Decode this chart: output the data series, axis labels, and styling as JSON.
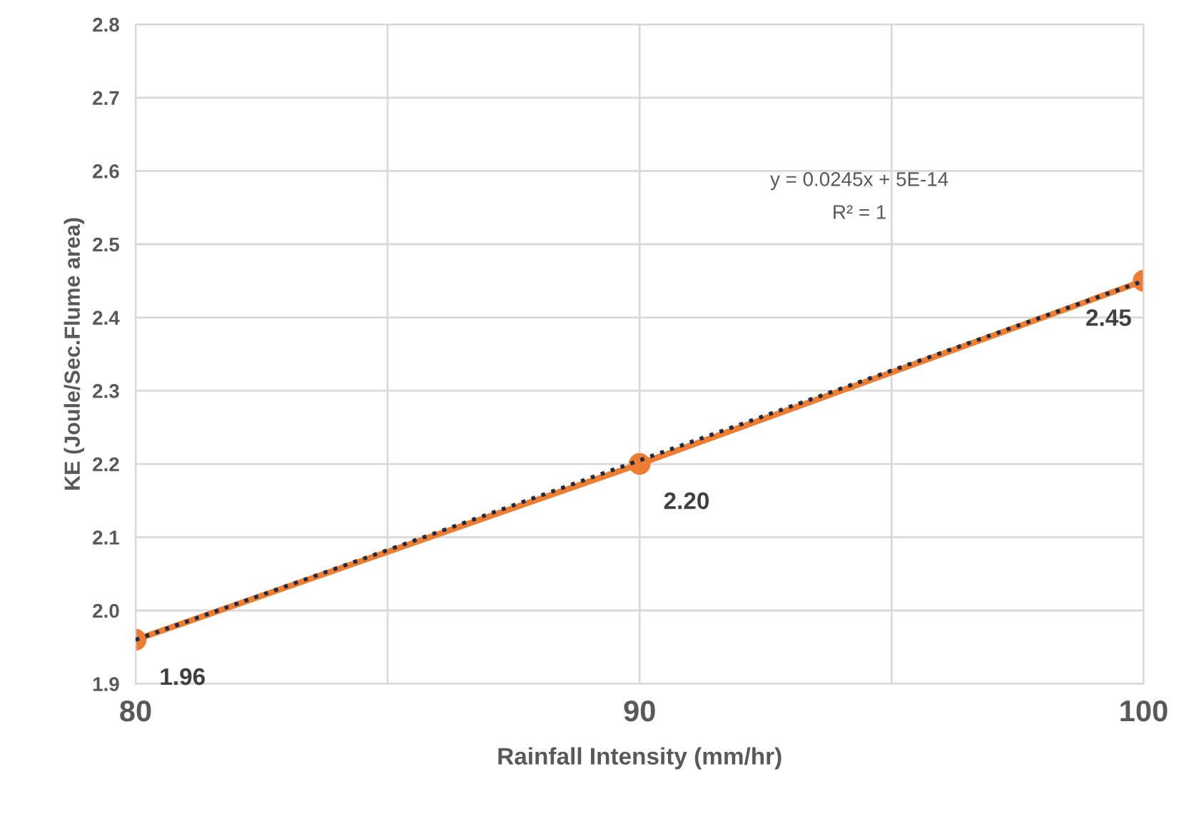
{
  "chart_data": {
    "type": "line",
    "xlabel": "Rainfall Intensity (mm/hr)",
    "ylabel": "KE (Joule/Sec.Flume area)",
    "x": [
      80,
      90,
      100
    ],
    "series": [
      {
        "color": "#ed7d31",
        "values": [
          1.96,
          2.2,
          2.45
        ],
        "marker": "circle",
        "line_style": "solid",
        "value_labels": [
          "1.96",
          "2.20",
          "2.45"
        ]
      },
      {
        "type": "line",
        "color": "#1f2a44",
        "x": [
          80,
          100
        ],
        "values": [
          1.96,
          2.45
        ],
        "marker": "none",
        "line_style": "dotted"
      }
    ],
    "xlim": [
      80,
      100
    ],
    "xticks": [
      80,
      {
        "value": 85,
        "label": null
      },
      90,
      {
        "value": 95,
        "label": null
      },
      100
    ],
    "ylim": [
      1.9,
      2.8
    ],
    "yticks": [
      1.9,
      {
        "value": 2,
        "label": "2.0"
      },
      2.1,
      2.2,
      2.3,
      2.4,
      2.5,
      2.6,
      2.7,
      2.8
    ],
    "grid": true,
    "legend": false,
    "annotations": [
      "y = 0.0245x + 5E-14",
      "R² = 1"
    ]
  }
}
